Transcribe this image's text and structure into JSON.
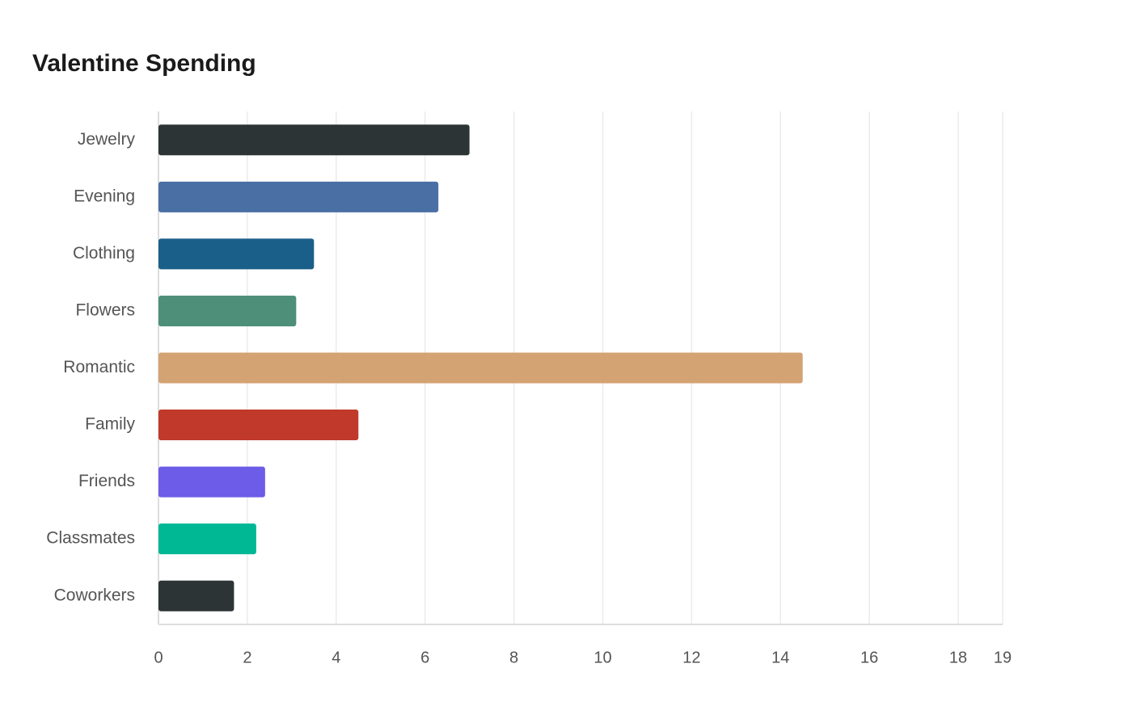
{
  "chart_data": {
    "type": "bar",
    "orientation": "horizontal",
    "title": "Valentine Spending",
    "categories": [
      "Jewelry",
      "Evening",
      "Clothing",
      "Flowers",
      "Romantic",
      "Family",
      "Friends",
      "Classmates",
      "Coworkers"
    ],
    "values": [
      7.0,
      6.3,
      3.5,
      3.1,
      14.5,
      4.5,
      2.4,
      2.2,
      1.7
    ],
    "colors": [
      "#2d3436",
      "#4a6fa5",
      "#1a5f8a",
      "#4e8f7a",
      "#d4a373",
      "#c0392b",
      "#6c5ce7",
      "#00b894",
      "#2d3436"
    ],
    "xlim": [
      0,
      19
    ],
    "xticks": [
      0,
      2,
      4,
      6,
      8,
      10,
      12,
      14,
      16,
      18,
      19
    ],
    "grid": true
  }
}
